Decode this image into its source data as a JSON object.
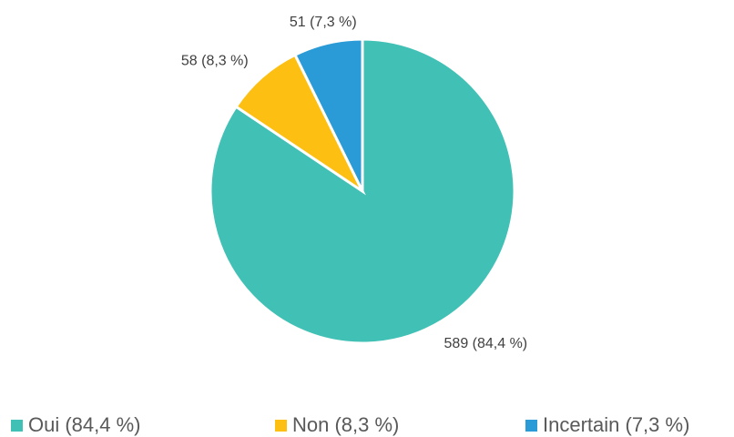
{
  "chart_data": {
    "type": "pie",
    "categories": [
      "Oui (84,4 %)",
      "Non (8,3 %)",
      "Incertain (7,3 %)"
    ],
    "values": [
      589,
      58,
      51
    ],
    "value_labels": [
      "589 (84,4 %)",
      "58 (8,3 %)",
      "51 (7,3 %)"
    ],
    "colors": [
      "#41c0b5",
      "#fdbf11",
      "#2a9bd6"
    ],
    "legend": "bottom"
  }
}
